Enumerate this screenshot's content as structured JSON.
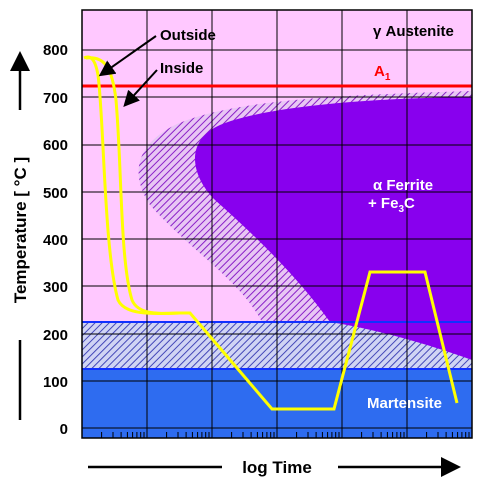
{
  "diagram": {
    "y_axis_label": "Temperature  [ °C ]",
    "x_axis_label": "log  Time",
    "y_ticks": [
      "800",
      "700",
      "600",
      "500",
      "400",
      "300",
      "200",
      "100",
      "0"
    ],
    "labels": {
      "outside": "Outside",
      "inside": "Inside",
      "austenite": "γ Austenite",
      "a1": "A",
      "a1_sub": "1",
      "ferrite_line1": "α Ferrite",
      "ferrite_line2": "+ Fe",
      "ferrite_sub": "3",
      "ferrite_c": "C",
      "martensite": "Martensite"
    },
    "colors": {
      "austenite_bg": "#ffc8ff",
      "ferrite": "#8800ee",
      "martensite": "#2e6cf0",
      "a1_line": "#ff0000",
      "cooling_curve": "#ffff00",
      "grid": "#000000"
    }
  }
}
